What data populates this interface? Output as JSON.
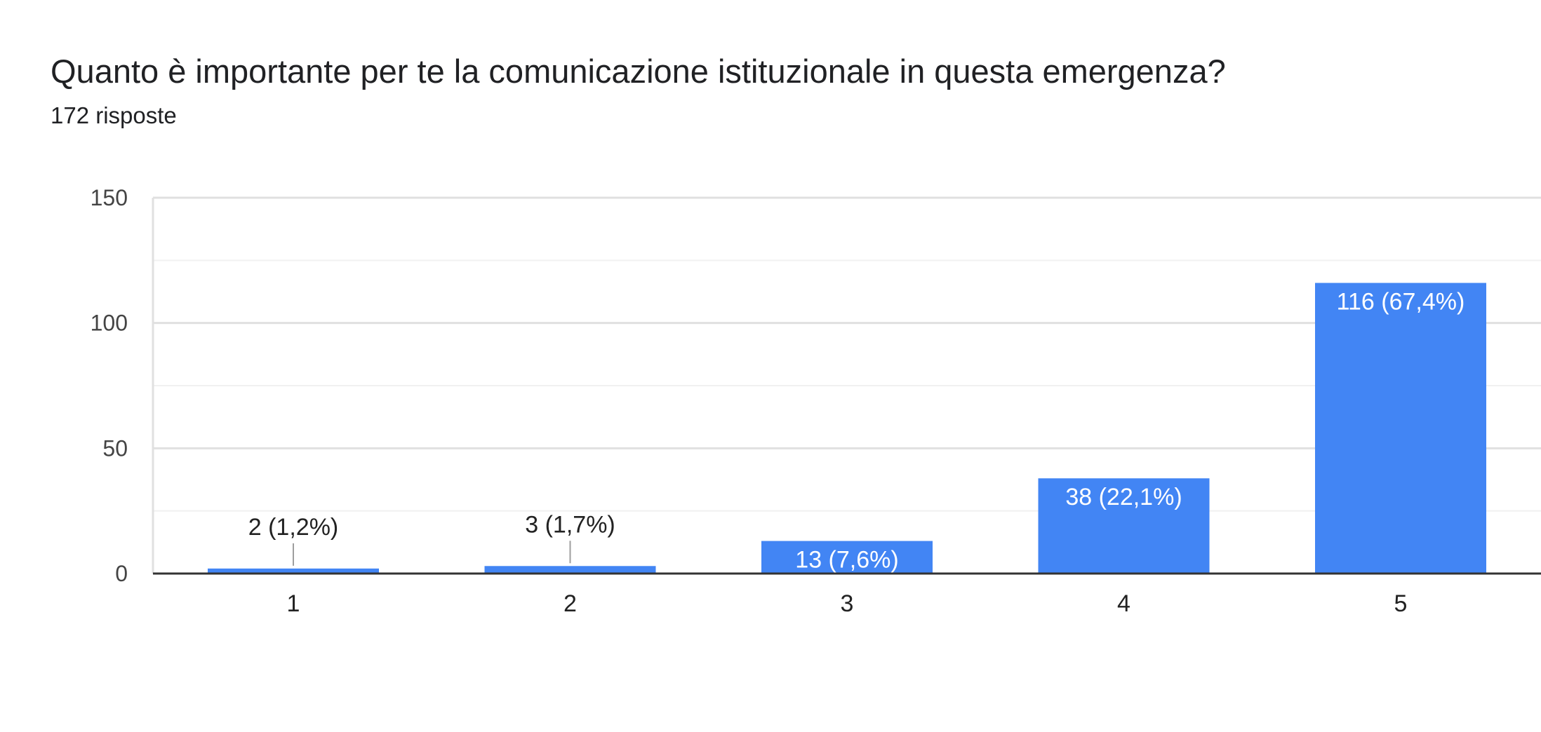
{
  "header": {
    "title": "Quanto è importante per te la comunicazione istituzionale in questa emergenza?",
    "subtitle": "172 risposte"
  },
  "colors": {
    "bar": "#4285f4",
    "grid_major": "#e0e0e0",
    "grid_minor": "#f1f1f1",
    "baseline": "#333333",
    "leader": "#9e9e9e"
  },
  "chart_data": {
    "type": "bar",
    "categories": [
      "1",
      "2",
      "3",
      "4",
      "5"
    ],
    "values": [
      2,
      3,
      13,
      38,
      116
    ],
    "data_labels": [
      "2 (1,2%)",
      "3 (1,7%)",
      "13 (7,6%)",
      "38 (22,1%)",
      "116 (67,4%)"
    ],
    "title": "Quanto è importante per te la comunicazione istituzionale in questa emergenza?",
    "subtitle": "172 risposte",
    "xlabel": "",
    "ylabel": "",
    "ylim": [
      0,
      150
    ],
    "yticks": [
      0,
      50,
      100,
      150
    ],
    "grid": true,
    "legend": "none"
  }
}
